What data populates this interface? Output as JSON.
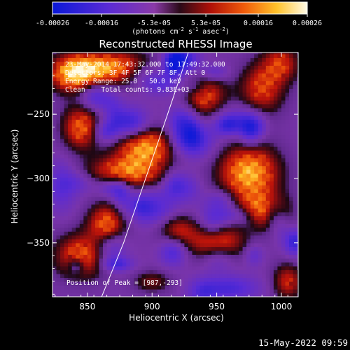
{
  "chart_data": {
    "type": "heatmap",
    "title": "Reconstructed RHESSI Image",
    "xlabel": "Heliocentric X (arcsec)",
    "ylabel": "Heliocentric Y (arcsec)",
    "xlim": [
      823,
      1013
    ],
    "ylim": [
      -392,
      -202
    ],
    "xticks": [
      850,
      900,
      950,
      1000
    ],
    "yticks": [
      -250,
      -300,
      -350
    ],
    "colorbar": {
      "min": -0.00026,
      "max": 0.00026,
      "ticks": [
        "-0.00026",
        "-0.00016",
        "-5.3e-05",
        "5.3e-05",
        "0.00016",
        "0.00026"
      ],
      "tick_values": [
        -0.00026,
        -0.00016,
        -5.3e-05,
        5.3e-05,
        0.00016,
        0.00026
      ],
      "units_text": "(photons cm",
      "units_exp1": "-2",
      "units_mid": " s",
      "units_exp2": "-1",
      "units_end": " asec",
      "units_exp3": "-2",
      "units_close": ")"
    },
    "annotations": [
      "23-May-2014 17:43:32.000 to 17:49:32.000",
      "Detectors: 3F 4F 5F 6F 7F 8F, Att 0",
      "Energy Range: 25.0 - 50.0 keV",
      "Clean    Total counts: 9.83E+03"
    ],
    "peak_label": "Position of Peak = [987,-293]",
    "peak": [
      987,
      -293
    ],
    "limb_curve": [
      [
        861,
        -392
      ],
      [
        878,
        -350
      ],
      [
        895,
        -300
      ],
      [
        912,
        -250
      ],
      [
        928,
        -202
      ]
    ],
    "sources": [
      {
        "x": 840,
        "y": -218,
        "sx": 14,
        "sy": 10,
        "amp": 0.00026
      },
      {
        "x": 870,
        "y": -213,
        "sx": 20,
        "sy": 9,
        "amp": 0.00022
      },
      {
        "x": 845,
        "y": -260,
        "sx": 10,
        "sy": 12,
        "amp": 0.0002
      },
      {
        "x": 895,
        "y": -275,
        "sx": 15,
        "sy": 10,
        "amp": 0.00024
      },
      {
        "x": 880,
        "y": -295,
        "sx": 20,
        "sy": 9,
        "amp": 0.00022
      },
      {
        "x": 865,
        "y": -335,
        "sx": 10,
        "sy": 11,
        "amp": 0.00021
      },
      {
        "x": 845,
        "y": -360,
        "sx": 14,
        "sy": 12,
        "amp": 0.0002
      },
      {
        "x": 920,
        "y": -340,
        "sx": 10,
        "sy": 9,
        "amp": 0.00014
      },
      {
        "x": 950,
        "y": -350,
        "sx": 14,
        "sy": 10,
        "amp": 0.00023
      },
      {
        "x": 975,
        "y": -295,
        "sx": 16,
        "sy": 15,
        "amp": 0.00026
      },
      {
        "x": 985,
        "y": -325,
        "sx": 14,
        "sy": 10,
        "amp": 0.0002
      },
      {
        "x": 940,
        "y": -235,
        "sx": 12,
        "sy": 12,
        "amp": 0.00018
      },
      {
        "x": 985,
        "y": -230,
        "sx": 12,
        "sy": 14,
        "amp": 0.00017
      },
      {
        "x": 1000,
        "y": -210,
        "sx": 10,
        "sy": 10,
        "amp": 0.00015
      },
      {
        "x": 1005,
        "y": -380,
        "sx": 8,
        "sy": 10,
        "amp": 0.00015
      },
      {
        "x": 900,
        "y": -380,
        "sx": 10,
        "sy": 6,
        "amp": 0.0001
      }
    ],
    "holes": [
      {
        "x": 855,
        "y": -235,
        "sx": 8,
        "sy": 8,
        "amp": -0.00012
      },
      {
        "x": 900,
        "y": -325,
        "sx": 14,
        "sy": 8,
        "amp": -0.0001
      },
      {
        "x": 935,
        "y": -270,
        "sx": 10,
        "sy": 10,
        "amp": -0.00011
      },
      {
        "x": 960,
        "y": -385,
        "sx": 16,
        "sy": 7,
        "amp": -0.00011
      },
      {
        "x": 830,
        "y": -305,
        "sx": 8,
        "sy": 14,
        "amp": -9e-05
      },
      {
        "x": 965,
        "y": -255,
        "sx": 12,
        "sy": 8,
        "amp": -0.0001
      }
    ]
  },
  "footer": {
    "timestamp": "15-May-2022 09:59"
  }
}
